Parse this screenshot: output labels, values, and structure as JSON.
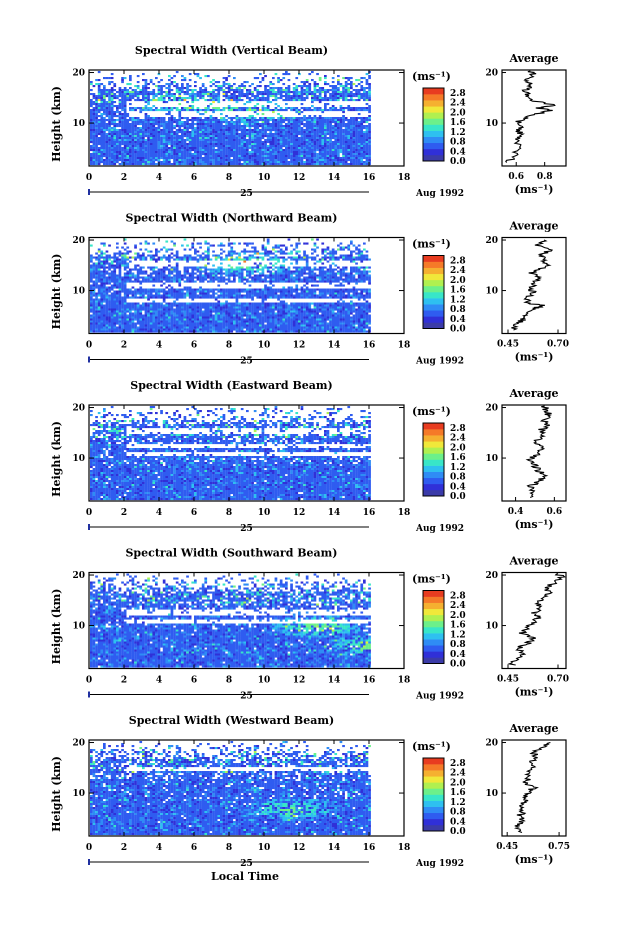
{
  "colorbar": {
    "unit_label": "(ms⁻¹)",
    "ticks": [
      "2.8",
      "2.4",
      "2.0",
      "1.6",
      "1.2",
      "0.8",
      "0.4",
      "0.0"
    ],
    "colors": [
      "#3b3ba8",
      "#3030d8",
      "#2f5cf0",
      "#2f8cf5",
      "#2ec0f0",
      "#38e6c8",
      "#6cf08a",
      "#b0f050",
      "#f0e83a",
      "#f5b030",
      "#f57a28",
      "#e83c20"
    ]
  },
  "labels": {
    "ylabel": "Height (km)",
    "date_label": "25",
    "date_suffix": "Aug 1992",
    "xlabel": "Local Time",
    "average_title": "Average",
    "average_unit": "(ms⁻¹)"
  },
  "chart_data": [
    {
      "type": "heatmap",
      "title": "Spectral Width (Vertical Beam)",
      "x_ticks": [
        "0",
        "2",
        "4",
        "6",
        "8",
        "10",
        "12",
        "14",
        "16",
        "18"
      ],
      "xlim": [
        0,
        18
      ],
      "data_end_hour": 16,
      "y_ticks": [
        "20",
        "10"
      ],
      "ylim": [
        1.5,
        20.5
      ],
      "gap_bands_km": [
        [
          13.5,
          14.5
        ],
        [
          11.5,
          12.6
        ]
      ],
      "jet_centers": [
        [
          9.2,
          12.5
        ],
        [
          5.5,
          14
        ]
      ],
      "average": {
        "title": "Average",
        "x_ticks": [
          "0.6",
          "0.8"
        ],
        "xlim": [
          0.5,
          0.95
        ],
        "profile": [
          [
            2.2,
            0.54
          ],
          [
            3.5,
            0.59
          ],
          [
            5,
            0.62
          ],
          [
            6.5,
            0.6
          ],
          [
            7.5,
            0.64
          ],
          [
            8.5,
            0.61
          ],
          [
            9.5,
            0.63
          ],
          [
            10.5,
            0.62
          ],
          [
            11.5,
            0.7
          ],
          [
            12.5,
            0.85
          ],
          [
            13,
            0.74
          ],
          [
            13.5,
            0.88
          ],
          [
            14.5,
            0.7
          ],
          [
            15.5,
            0.68
          ],
          [
            16.5,
            0.66
          ],
          [
            17.5,
            0.71
          ],
          [
            18.5,
            0.68
          ],
          [
            19.5,
            0.72
          ],
          [
            20.3,
            0.7
          ]
        ]
      }
    },
    {
      "type": "heatmap",
      "title": "Spectral Width (Northward Beam)",
      "x_ticks": [
        "0",
        "2",
        "4",
        "6",
        "8",
        "10",
        "12",
        "14",
        "16",
        "18"
      ],
      "xlim": [
        0,
        18
      ],
      "data_end_hour": 16,
      "y_ticks": [
        "20",
        "10"
      ],
      "ylim": [
        1.5,
        20.5
      ],
      "gap_bands_km": [
        [
          15,
          16.2
        ],
        [
          10.8,
          11.8
        ],
        [
          8,
          8.6
        ]
      ],
      "jet_centers": [
        [
          9,
          15.5
        ]
      ],
      "average": {
        "title": "Average",
        "x_ticks": [
          "0.45",
          "0.70"
        ],
        "xlim": [
          0.42,
          0.74
        ],
        "profile": [
          [
            2.2,
            0.47
          ],
          [
            3.5,
            0.5
          ],
          [
            4.5,
            0.53
          ],
          [
            5.5,
            0.55
          ],
          [
            6.5,
            0.58
          ],
          [
            7,
            0.63
          ],
          [
            7.5,
            0.55
          ],
          [
            8.5,
            0.54
          ],
          [
            9.5,
            0.58
          ],
          [
            10.5,
            0.56
          ],
          [
            11.5,
            0.58
          ],
          [
            12.5,
            0.6
          ],
          [
            13.5,
            0.57
          ],
          [
            14,
            0.6
          ],
          [
            15,
            0.65
          ],
          [
            16,
            0.63
          ],
          [
            17,
            0.62
          ],
          [
            18,
            0.66
          ],
          [
            19,
            0.6
          ],
          [
            20,
            0.63
          ]
        ]
      }
    },
    {
      "type": "heatmap",
      "title": "Spectral Width (Eastward Beam)",
      "x_ticks": [
        "0",
        "2",
        "4",
        "6",
        "8",
        "10",
        "12",
        "14",
        "16",
        "18"
      ],
      "xlim": [
        0,
        18
      ],
      "data_end_hour": 16,
      "y_ticks": [
        "20",
        "10"
      ],
      "ylim": [
        1.5,
        20.5
      ],
      "gap_bands_km": [
        [
          15,
          16
        ],
        [
          12,
          12.8
        ],
        [
          10.5,
          11.2
        ]
      ],
      "jet_centers": [],
      "average": {
        "title": "Average",
        "x_ticks": [
          "0.4",
          "0.6"
        ],
        "xlim": [
          0.33,
          0.66
        ],
        "profile": [
          [
            2.2,
            0.47
          ],
          [
            3.5,
            0.49
          ],
          [
            4.5,
            0.48
          ],
          [
            5.5,
            0.53
          ],
          [
            6.5,
            0.55
          ],
          [
            7.5,
            0.52
          ],
          [
            8.5,
            0.5
          ],
          [
            9.5,
            0.47
          ],
          [
            10.5,
            0.5
          ],
          [
            11.5,
            0.53
          ],
          [
            12.5,
            0.52
          ],
          [
            13.5,
            0.5
          ],
          [
            14.5,
            0.55
          ],
          [
            15.5,
            0.53
          ],
          [
            16.5,
            0.56
          ],
          [
            17.5,
            0.55
          ],
          [
            18.5,
            0.57
          ],
          [
            19.5,
            0.56
          ],
          [
            20.3,
            0.55
          ]
        ]
      }
    },
    {
      "type": "heatmap",
      "title": "Spectral Width (Southward Beam)",
      "x_ticks": [
        "0",
        "2",
        "4",
        "6",
        "8",
        "10",
        "12",
        "14",
        "16",
        "18"
      ],
      "xlim": [
        0,
        18
      ],
      "data_end_hour": 16,
      "y_ticks": [
        "20",
        "10"
      ],
      "ylim": [
        1.5,
        20.5
      ],
      "gap_bands_km": [
        [
          12.2,
          13.2
        ],
        [
          10.6,
          11.2
        ]
      ],
      "jet_centers": [
        [
          16,
          6
        ],
        [
          13,
          10
        ]
      ],
      "average": {
        "title": "Average",
        "x_ticks": [
          "0.45",
          "0.70"
        ],
        "xlim": [
          0.42,
          0.74
        ],
        "profile": [
          [
            2.2,
            0.47
          ],
          [
            3.5,
            0.49
          ],
          [
            4.5,
            0.52
          ],
          [
            5.5,
            0.5
          ],
          [
            6.5,
            0.55
          ],
          [
            7.5,
            0.58
          ],
          [
            8.5,
            0.52
          ],
          [
            9.5,
            0.55
          ],
          [
            10.5,
            0.57
          ],
          [
            11.5,
            0.6
          ],
          [
            12.5,
            0.58
          ],
          [
            13.5,
            0.62
          ],
          [
            14.5,
            0.6
          ],
          [
            15.5,
            0.63
          ],
          [
            16.5,
            0.66
          ],
          [
            17.5,
            0.64
          ],
          [
            18.5,
            0.69
          ],
          [
            19.5,
            0.72
          ],
          [
            20.3,
            0.7
          ]
        ]
      }
    },
    {
      "type": "heatmap",
      "title": "Spectral Width (Westward Beam)",
      "x_ticks": [
        "0",
        "2",
        "4",
        "6",
        "8",
        "10",
        "12",
        "14",
        "16",
        "18"
      ],
      "xlim": [
        0,
        18
      ],
      "data_end_hour": 16,
      "y_ticks": [
        "20",
        "10"
      ],
      "ylim": [
        1.5,
        20.5
      ],
      "gap_bands_km": [
        [
          14.5,
          15.2
        ]
      ],
      "jet_centers": [
        [
          11.5,
          7
        ]
      ],
      "average": {
        "title": "Average",
        "x_ticks": [
          "0.45",
          "0.75"
        ],
        "xlim": [
          0.42,
          0.79
        ],
        "profile": [
          [
            2.2,
            0.52
          ],
          [
            3.5,
            0.5
          ],
          [
            4.5,
            0.54
          ],
          [
            5.5,
            0.52
          ],
          [
            6.5,
            0.55
          ],
          [
            7.5,
            0.52
          ],
          [
            8.5,
            0.57
          ],
          [
            9.5,
            0.55
          ],
          [
            10.5,
            0.58
          ],
          [
            11.2,
            0.62
          ],
          [
            12,
            0.55
          ],
          [
            13,
            0.58
          ],
          [
            14,
            0.57
          ],
          [
            15,
            0.6
          ],
          [
            16,
            0.57
          ],
          [
            17,
            0.62
          ],
          [
            18,
            0.6
          ],
          [
            19,
            0.65
          ],
          [
            20,
            0.7
          ]
        ]
      }
    }
  ]
}
